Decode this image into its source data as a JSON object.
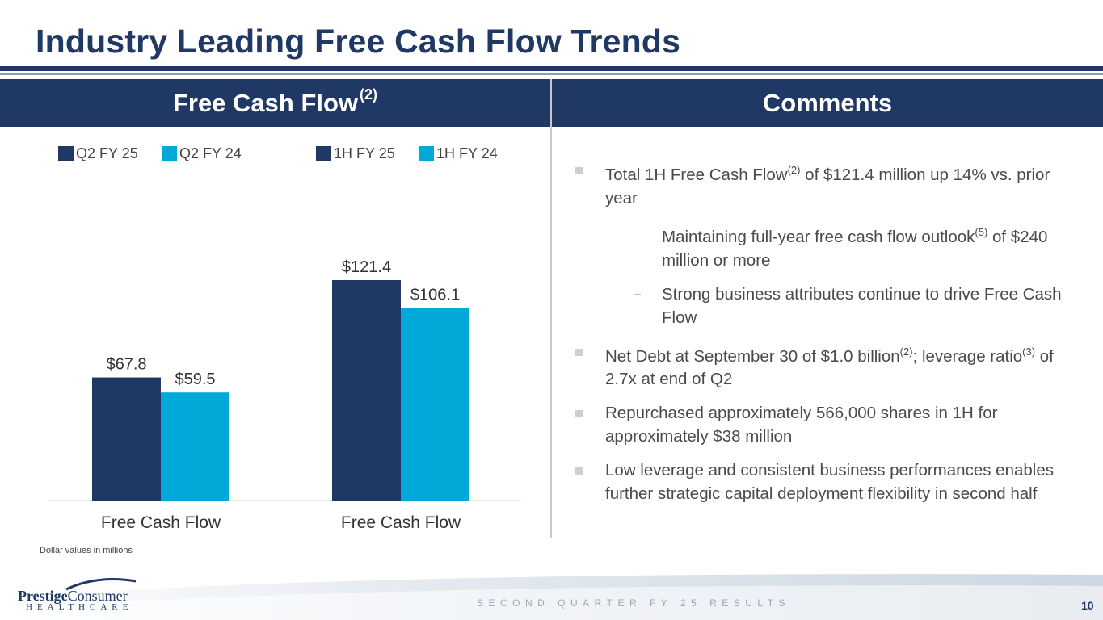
{
  "header": {
    "title": "Industry Leading Free Cash Flow Trends"
  },
  "left_panel": {
    "heading": "Free Cash Flow",
    "heading_sup": "(2)",
    "footnote": "Dollar values in millions"
  },
  "right_panel": {
    "heading": "Comments",
    "bullets": [
      {
        "level": 1,
        "parts": [
          "Total 1H Free Cash Flow",
          "(2)",
          " of $121.4 million up 14% vs. prior year"
        ]
      },
      {
        "level": 2,
        "parts": [
          "Maintaining full-year free cash flow outlook",
          "(5)",
          " of $240 million or more"
        ]
      },
      {
        "level": 2,
        "parts": [
          "Strong business attributes continue to drive Free Cash Flow"
        ]
      },
      {
        "level": 1,
        "parts": [
          "Net Debt at September 30 of $1.0 billion",
          "(2)",
          "; leverage ratio",
          "(3)",
          " of 2.7x at end of Q2"
        ]
      },
      {
        "level": 1,
        "parts": [
          "Repurchased approximately 566,000 shares in 1H for approximately $38 million"
        ]
      },
      {
        "level": 1,
        "parts": [
          "Low leverage and consistent business performances enables further strategic capital deployment flexibility in second half"
        ]
      }
    ]
  },
  "chart_data": {
    "type": "bar",
    "categories": [
      "Free Cash Flow",
      "Free Cash Flow"
    ],
    "series": [
      {
        "name": "Q2 FY 25",
        "color": "#1f3864",
        "values": [
          67.8,
          null
        ]
      },
      {
        "name": "Q2 FY 24",
        "color": "#00a9d7",
        "values": [
          59.5,
          null
        ]
      },
      {
        "name": "1H FY 25",
        "color": "#1f3864",
        "values": [
          null,
          121.4
        ]
      },
      {
        "name": "1H FY 24",
        "color": "#00a9d7",
        "values": [
          null,
          106.1
        ]
      }
    ],
    "bars": [
      {
        "category_index": 0,
        "series": "Q2 FY 25",
        "value": 67.8,
        "label": "$67.8",
        "color": "#1f3864"
      },
      {
        "category_index": 0,
        "series": "Q2 FY 24",
        "value": 59.5,
        "label": "$59.5",
        "color": "#00a9d7"
      },
      {
        "category_index": 1,
        "series": "1H FY 25",
        "value": 121.4,
        "label": "$121.4",
        "color": "#1f3864"
      },
      {
        "category_index": 1,
        "series": "1H FY 24",
        "value": 106.1,
        "label": "$106.1",
        "color": "#00a9d7"
      }
    ],
    "legend_position": "top",
    "ylim": [
      0,
      145
    ],
    "grid": false,
    "xlabel": "",
    "ylabel": ""
  },
  "footer": {
    "text": "SECOND QUARTER FY 25 RESULTS",
    "page_number": "10",
    "logo_brand_1": "Prestige",
    "logo_brand_2": "Consumer",
    "logo_sub": "HEALTHCARE"
  }
}
